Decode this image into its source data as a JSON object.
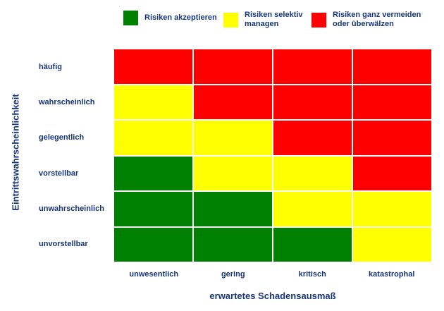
{
  "figure": {
    "background": "#ffffff",
    "text_color": "#17357A"
  },
  "chart_data": {
    "type": "heatmap",
    "title": "",
    "xlabel": "erwartetes Schadensausmaß",
    "ylabel": "Eintrittswahrscheinlichkeit",
    "x_categories": [
      "unwesentlich",
      "gering",
      "kritisch",
      "katastrophal"
    ],
    "y_categories": [
      "häufig",
      "wahrscheinlich",
      "gelegentlich",
      "vorstellbar",
      "unwahrscheinlich",
      "unvorstellbar"
    ],
    "cells": [
      [
        "red",
        "red",
        "red",
        "red"
      ],
      [
        "yellow",
        "red",
        "red",
        "red"
      ],
      [
        "yellow",
        "yellow",
        "red",
        "red"
      ],
      [
        "green",
        "yellow",
        "yellow",
        "red"
      ],
      [
        "green",
        "green",
        "yellow",
        "yellow"
      ],
      [
        "green",
        "green",
        "green",
        "yellow"
      ]
    ],
    "cell_colors": {
      "green": "#008000",
      "yellow": "#ffff00",
      "red": "#ff0000"
    },
    "gridline_color": "#ffffff",
    "legend_position": "top",
    "legend": [
      {
        "color_key": "green",
        "color": "#008000",
        "label": "Risiken akzeptieren"
      },
      {
        "color_key": "yellow",
        "color": "#ffff00",
        "label": "Risiken selektiv\nmanagen"
      },
      {
        "color_key": "red",
        "color": "#ff0000",
        "label": "Risiken ganz vermeiden\noder überwälzen"
      }
    ]
  }
}
